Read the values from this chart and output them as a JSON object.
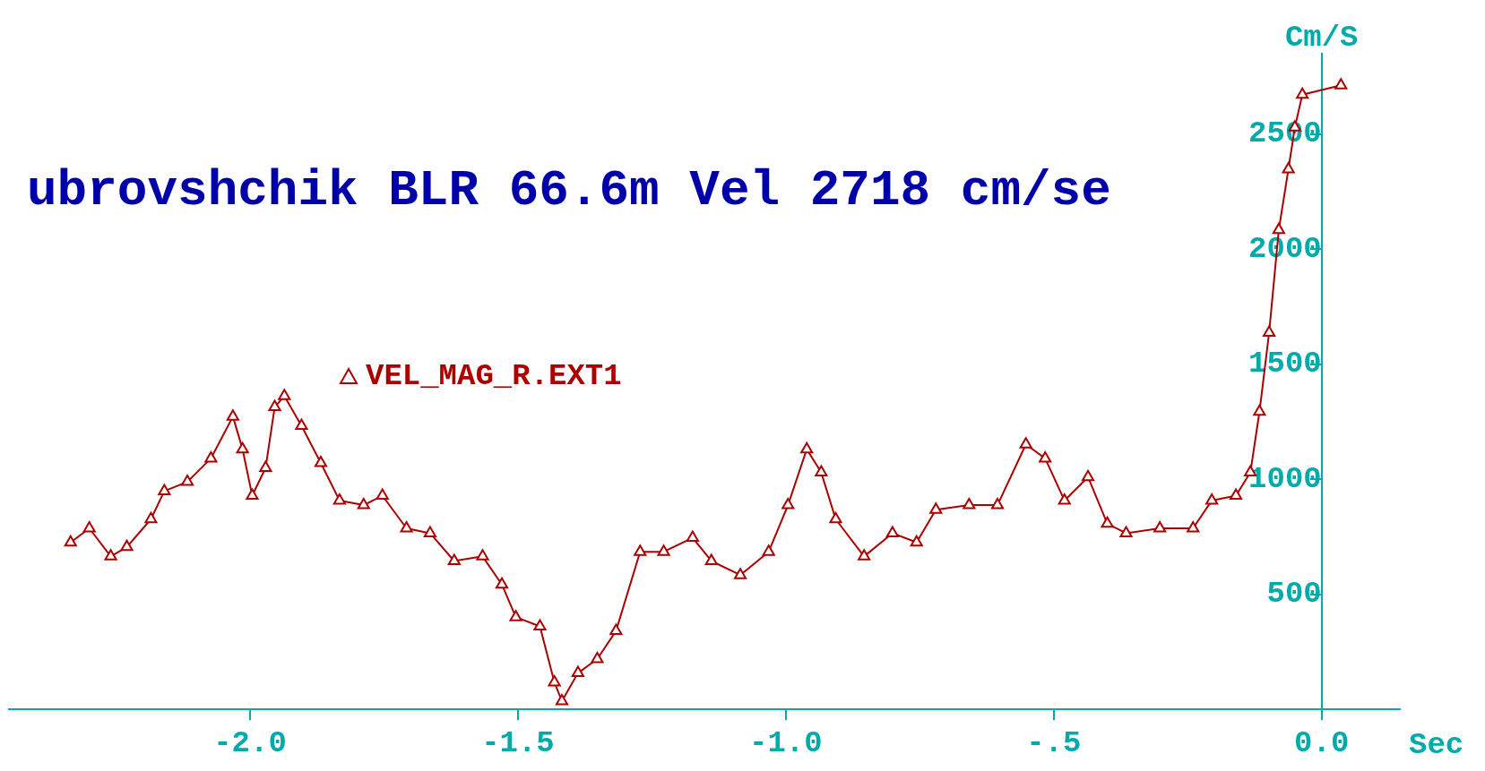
{
  "chart_data": {
    "type": "line",
    "title": "ubrovshchik BLR 66.6m Vel 2718 cm/se",
    "xlabel": "Sec",
    "ylabel": "Cm/S",
    "xlim": [
      -2.45,
      0.146
    ],
    "ylim": [
      0,
      2850
    ],
    "xticks": [
      {
        "value": -2,
        "label": "-2.0"
      },
      {
        "value": -1.5,
        "label": "-1.5"
      },
      {
        "value": -1,
        "label": "-1.0"
      },
      {
        "value": -0.5,
        "label": "-.5"
      },
      {
        "value": 0,
        "label": "0.0"
      }
    ],
    "yticks": [
      {
        "value": 0,
        "label": null
      },
      500,
      1000,
      1500,
      2000,
      2500
    ],
    "grid": false,
    "legend": "top left",
    "marker": "triangle",
    "line_style": "solid",
    "series": [
      {
        "name": "VEL_MAG_R.EXT1",
        "color": "#aa0000",
        "x": [
          -2.335,
          -2.3,
          -2.26,
          -2.23,
          -2.185,
          -2.16,
          -2.117,
          -2.073,
          -2.032,
          -2.014,
          -1.996,
          -1.971,
          -1.954,
          -1.936,
          -1.904,
          -1.868,
          -1.833,
          -1.788,
          -1.753,
          -1.708,
          -1.664,
          -1.619,
          -1.566,
          -1.53,
          -1.504,
          -1.459,
          -1.432,
          -1.418,
          -1.388,
          -1.352,
          -1.317,
          -1.272,
          -1.228,
          -1.174,
          -1.139,
          -1.085,
          -1.032,
          -0.996,
          -0.961,
          -0.934,
          -0.907,
          -0.854,
          -0.801,
          -0.756,
          -0.72,
          -0.658,
          -0.605,
          -0.552,
          -0.516,
          -0.48,
          -0.436,
          -0.4,
          -0.365,
          -0.302,
          -0.24,
          -0.205,
          -0.16,
          -0.133,
          -0.116,
          -0.098,
          -0.08,
          -0.062,
          -0.05,
          -0.036,
          0.036
        ],
        "values": [
          726,
          787,
          665,
          706,
          827,
          949,
          989,
          1091,
          1273,
          1131,
          929,
          1050,
          1314,
          1362,
          1233,
          1071,
          908,
          888,
          929,
          787,
          766,
          645,
          665,
          543,
          401,
          361,
          118,
          36,
          158,
          219,
          341,
          685,
          685,
          746,
          645,
          584,
          685,
          888,
          1131,
          1030,
          827,
          665,
          766,
          726,
          868,
          888,
          888,
          1152,
          1091,
          908,
          1010,
          807,
          766,
          787,
          787,
          908,
          929,
          1030,
          1294,
          1638,
          2084,
          2348,
          2530,
          2672,
          2713
        ]
      }
    ]
  }
}
